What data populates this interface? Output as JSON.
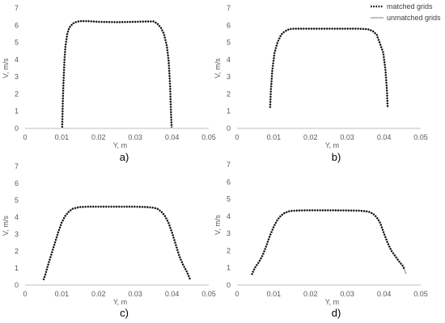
{
  "chart_data": [
    {
      "type": "line",
      "panel_label": "a)",
      "xlabel": "Y, m",
      "ylabel": "V, m/s",
      "xlim": [
        0,
        0.05
      ],
      "ylim": [
        0,
        7
      ],
      "x_ticks": [
        "0",
        "0.01",
        "0.02",
        "0.03",
        "0.04",
        "0.05"
      ],
      "y_ticks": [
        "0",
        "1",
        "2",
        "3",
        "4",
        "5",
        "6",
        "7"
      ],
      "series": [
        {
          "name": "matched grids",
          "style": "dotted",
          "x": [
            0.0101,
            0.0102,
            0.0104,
            0.0107,
            0.011,
            0.0115,
            0.012,
            0.013,
            0.014,
            0.015,
            0.017,
            0.02,
            0.025,
            0.03,
            0.033,
            0.035,
            0.036,
            0.037,
            0.0378,
            0.0386,
            0.0391,
            0.0395,
            0.0397,
            0.0399
          ],
          "y": [
            0.05,
            1.0,
            2.4,
            3.9,
            4.8,
            5.5,
            5.85,
            6.1,
            6.2,
            6.24,
            6.24,
            6.2,
            6.18,
            6.2,
            6.22,
            6.22,
            6.1,
            5.85,
            5.5,
            4.8,
            3.9,
            2.4,
            1.0,
            0.05
          ]
        },
        {
          "name": "unmatched grids",
          "style": "solid",
          "x": [
            0.0101,
            0.0102,
            0.0104,
            0.0107,
            0.011,
            0.0115,
            0.012,
            0.013,
            0.014,
            0.015,
            0.017,
            0.02,
            0.025,
            0.03,
            0.033,
            0.035,
            0.036,
            0.037,
            0.0378,
            0.0386,
            0.0391,
            0.0395,
            0.0397,
            0.0399
          ],
          "y": [
            0.05,
            1.0,
            2.4,
            3.9,
            4.8,
            5.5,
            5.85,
            6.1,
            6.2,
            6.24,
            6.24,
            6.2,
            6.18,
            6.2,
            6.22,
            6.22,
            6.1,
            5.85,
            5.5,
            4.8,
            3.9,
            2.4,
            1.0,
            0.05
          ]
        }
      ]
    },
    {
      "type": "line",
      "panel_label": "b)",
      "xlabel": "Y, m",
      "ylabel": "V, m/s",
      "xlim": [
        0,
        0.05
      ],
      "ylim": [
        0,
        7
      ],
      "x_ticks": [
        "0",
        "0.01",
        "0.02",
        "0.03",
        "0.04",
        "0.05"
      ],
      "y_ticks": [
        "0",
        "1",
        "2",
        "3",
        "4",
        "5",
        "6",
        "7"
      ],
      "legend": [
        "matched grids",
        "unmatched grids"
      ],
      "legend_position": "top-right",
      "series": [
        {
          "name": "matched grids",
          "style": "dotted",
          "x": [
            0.009,
            0.0092,
            0.0096,
            0.0102,
            0.011,
            0.012,
            0.013,
            0.014,
            0.015,
            0.017,
            0.02,
            0.025,
            0.03,
            0.033,
            0.035,
            0.036,
            0.037,
            0.038,
            0.0388,
            0.0398,
            0.0404,
            0.0408,
            0.041
          ],
          "y": [
            1.2,
            2.2,
            3.4,
            4.4,
            5.0,
            5.45,
            5.65,
            5.75,
            5.8,
            5.8,
            5.8,
            5.8,
            5.8,
            5.8,
            5.78,
            5.75,
            5.65,
            5.45,
            5.0,
            4.4,
            3.4,
            2.2,
            1.2
          ]
        },
        {
          "name": "unmatched grids",
          "style": "solid",
          "x": [
            0.009,
            0.0092,
            0.0096,
            0.0102,
            0.011,
            0.012,
            0.013,
            0.014,
            0.015,
            0.017,
            0.02,
            0.025,
            0.03,
            0.033,
            0.035,
            0.036,
            0.037,
            0.038,
            0.0388,
            0.0398,
            0.0404,
            0.0408,
            0.041
          ],
          "y": [
            1.2,
            2.2,
            3.4,
            4.4,
            5.0,
            5.45,
            5.65,
            5.75,
            5.8,
            5.8,
            5.8,
            5.8,
            5.8,
            5.8,
            5.78,
            5.75,
            5.65,
            5.45,
            5.0,
            4.4,
            3.4,
            2.2,
            1.2
          ]
        }
      ]
    },
    {
      "type": "line",
      "panel_label": "c)",
      "xlabel": "Y, m",
      "ylabel": "V, m/s",
      "xlim": [
        0,
        0.05
      ],
      "ylim": [
        0,
        7
      ],
      "x_ticks": [
        "0",
        "0.01",
        "0.02",
        "0.03",
        "0.04",
        "0.05"
      ],
      "y_ticks": [
        "0",
        "1",
        "2",
        "3",
        "4",
        "5",
        "6",
        "7"
      ],
      "series": [
        {
          "name": "matched grids",
          "style": "dotted",
          "x": [
            0.005,
            0.0055,
            0.006,
            0.007,
            0.008,
            0.009,
            0.01,
            0.011,
            0.012,
            0.013,
            0.014,
            0.015,
            0.017,
            0.02,
            0.025,
            0.03,
            0.033,
            0.035,
            0.036,
            0.037,
            0.038,
            0.039,
            0.04,
            0.041,
            0.042,
            0.043,
            0.044,
            0.0445,
            0.045
          ],
          "y": [
            0.3,
            0.6,
            1.0,
            1.7,
            2.4,
            3.1,
            3.7,
            4.1,
            4.35,
            4.5,
            4.56,
            4.6,
            4.62,
            4.62,
            4.62,
            4.62,
            4.6,
            4.56,
            4.5,
            4.35,
            4.1,
            3.7,
            3.1,
            2.4,
            1.7,
            1.2,
            0.8,
            0.55,
            0.3
          ]
        },
        {
          "name": "unmatched grids",
          "style": "solid",
          "x": [
            0.005,
            0.0055,
            0.006,
            0.007,
            0.008,
            0.009,
            0.01,
            0.011,
            0.012,
            0.013,
            0.014,
            0.015,
            0.017,
            0.02,
            0.025,
            0.03,
            0.033,
            0.035,
            0.036,
            0.037,
            0.038,
            0.039,
            0.04,
            0.041,
            0.042,
            0.043,
            0.044,
            0.0445,
            0.045
          ],
          "y": [
            0.3,
            0.6,
            1.0,
            1.7,
            2.4,
            3.1,
            3.7,
            4.1,
            4.35,
            4.5,
            4.56,
            4.6,
            4.62,
            4.62,
            4.62,
            4.62,
            4.6,
            4.56,
            4.5,
            4.35,
            4.1,
            3.7,
            3.1,
            2.4,
            1.7,
            1.2,
            0.8,
            0.55,
            0.3
          ]
        }
      ]
    },
    {
      "type": "line",
      "panel_label": "d)",
      "xlabel": "Y, m",
      "ylabel": "V, m/s",
      "xlim": [
        0,
        0.05
      ],
      "ylim": [
        0,
        7
      ],
      "x_ticks": [
        "0",
        "0.01",
        "0.02",
        "0.03",
        "0.04",
        "0.05"
      ],
      "y_ticks": [
        "0",
        "1",
        "2",
        "3",
        "4",
        "5",
        "6",
        "7"
      ],
      "series": [
        {
          "name": "matched grids",
          "style": "dotted",
          "x": [
            0.004,
            0.0045,
            0.005,
            0.006,
            0.007,
            0.008,
            0.009,
            0.01,
            0.011,
            0.012,
            0.013,
            0.014,
            0.015,
            0.017,
            0.02,
            0.025,
            0.03,
            0.033,
            0.035,
            0.036,
            0.037,
            0.038,
            0.039,
            0.04,
            0.041,
            0.042,
            0.043,
            0.044,
            0.045,
            0.0455
          ],
          "y": [
            0.6,
            0.85,
            1.05,
            1.35,
            1.75,
            2.3,
            2.9,
            3.4,
            3.8,
            4.05,
            4.2,
            4.28,
            4.32,
            4.34,
            4.35,
            4.35,
            4.34,
            4.33,
            4.3,
            4.25,
            4.15,
            3.95,
            3.6,
            3.0,
            2.45,
            2.0,
            1.7,
            1.4,
            1.15,
            0.95
          ]
        },
        {
          "name": "unmatched grids",
          "style": "solid",
          "x": [
            0.004,
            0.0045,
            0.005,
            0.006,
            0.007,
            0.008,
            0.009,
            0.01,
            0.011,
            0.012,
            0.013,
            0.014,
            0.015,
            0.017,
            0.02,
            0.025,
            0.03,
            0.033,
            0.035,
            0.036,
            0.037,
            0.038,
            0.039,
            0.04,
            0.041,
            0.042,
            0.043,
            0.044,
            0.045,
            0.0455,
            0.046
          ],
          "y": [
            0.6,
            0.85,
            1.05,
            1.35,
            1.75,
            2.3,
            2.9,
            3.4,
            3.8,
            4.05,
            4.2,
            4.28,
            4.32,
            4.34,
            4.35,
            4.35,
            4.34,
            4.33,
            4.3,
            4.25,
            4.15,
            3.95,
            3.6,
            3.0,
            2.45,
            2.0,
            1.7,
            1.4,
            1.15,
            0.95,
            0.65
          ]
        }
      ]
    }
  ],
  "colors": {
    "axis": "#bfbfbf",
    "tick_text": "#595959",
    "matched_line": "#000000",
    "unmatched_line": "#7f7f7f"
  }
}
